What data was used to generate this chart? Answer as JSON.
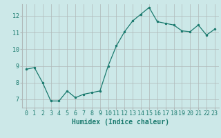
{
  "x": [
    0,
    1,
    2,
    3,
    4,
    5,
    6,
    7,
    8,
    9,
    10,
    11,
    12,
    13,
    14,
    15,
    16,
    17,
    18,
    19,
    20,
    21,
    22,
    23
  ],
  "y": [
    8.8,
    8.9,
    8.0,
    6.9,
    6.9,
    7.5,
    7.1,
    7.3,
    7.4,
    7.5,
    9.0,
    10.2,
    11.05,
    11.7,
    12.1,
    12.5,
    11.65,
    11.55,
    11.45,
    11.1,
    11.05,
    11.45,
    10.85,
    11.2
  ],
  "xlabel": "Humidex (Indice chaleur)",
  "ylim": [
    6.5,
    12.7
  ],
  "xlim": [
    -0.5,
    23.5
  ],
  "yticks": [
    7,
    8,
    9,
    10,
    11,
    12
  ],
  "xticks": [
    0,
    1,
    2,
    3,
    4,
    5,
    6,
    7,
    8,
    9,
    10,
    11,
    12,
    13,
    14,
    15,
    16,
    17,
    18,
    19,
    20,
    21,
    22,
    23
  ],
  "line_color": "#1a7a6e",
  "bg_color": "#cce8e8",
  "grid_color": "#b0b8b8",
  "font_color": "#1a7a6e",
  "font_size": 6.0,
  "xlabel_fontsize": 7.0
}
